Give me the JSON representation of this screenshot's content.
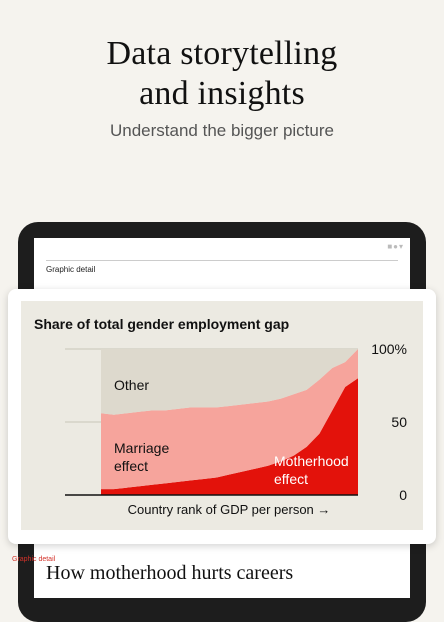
{
  "hero": {
    "title_line1": "Data storytelling",
    "title_line2": "and insights",
    "subtitle": "Understand the bigger picture"
  },
  "app_screen": {
    "section_label": "Graphic detail"
  },
  "chart_data": {
    "type": "area",
    "title": "Share of total gender employment gap",
    "xlabel": "Country rank of GDP per person →",
    "ylabel": "",
    "ylim": [
      0,
      100
    ],
    "yticks": [
      "100%",
      "50",
      "0"
    ],
    "x": [
      0,
      5,
      10,
      15,
      20,
      25,
      30,
      35,
      40,
      45,
      50,
      55,
      60,
      65,
      70,
      75,
      80,
      85,
      90,
      95,
      100
    ],
    "series": [
      {
        "name": "Motherhood effect",
        "values": [
          4,
          4,
          5,
          6,
          7,
          8,
          9,
          10,
          11,
          12,
          14,
          16,
          18,
          20,
          23,
          27,
          33,
          42,
          58,
          74,
          80
        ]
      },
      {
        "name": "Marriage effect",
        "values": [
          52,
          51,
          51,
          51,
          51,
          50,
          50,
          50,
          49,
          48,
          47,
          46,
          45,
          44,
          43,
          42,
          39,
          37,
          29,
          17,
          20
        ]
      },
      {
        "name": "Other",
        "values": [
          44,
          45,
          44,
          43,
          42,
          42,
          41,
          40,
          40,
          40,
          39,
          38,
          37,
          36,
          34,
          31,
          28,
          21,
          13,
          9,
          0
        ]
      }
    ],
    "colors": {
      "motherhood": "#e3120b",
      "marriage": "#f6a49c",
      "other": "#ddd9cd",
      "grid": "#c9c5b8"
    },
    "grid": true,
    "legend": "inline"
  },
  "article": {
    "section_label": "Graphic detail",
    "headline": "How motherhood hurts careers"
  }
}
